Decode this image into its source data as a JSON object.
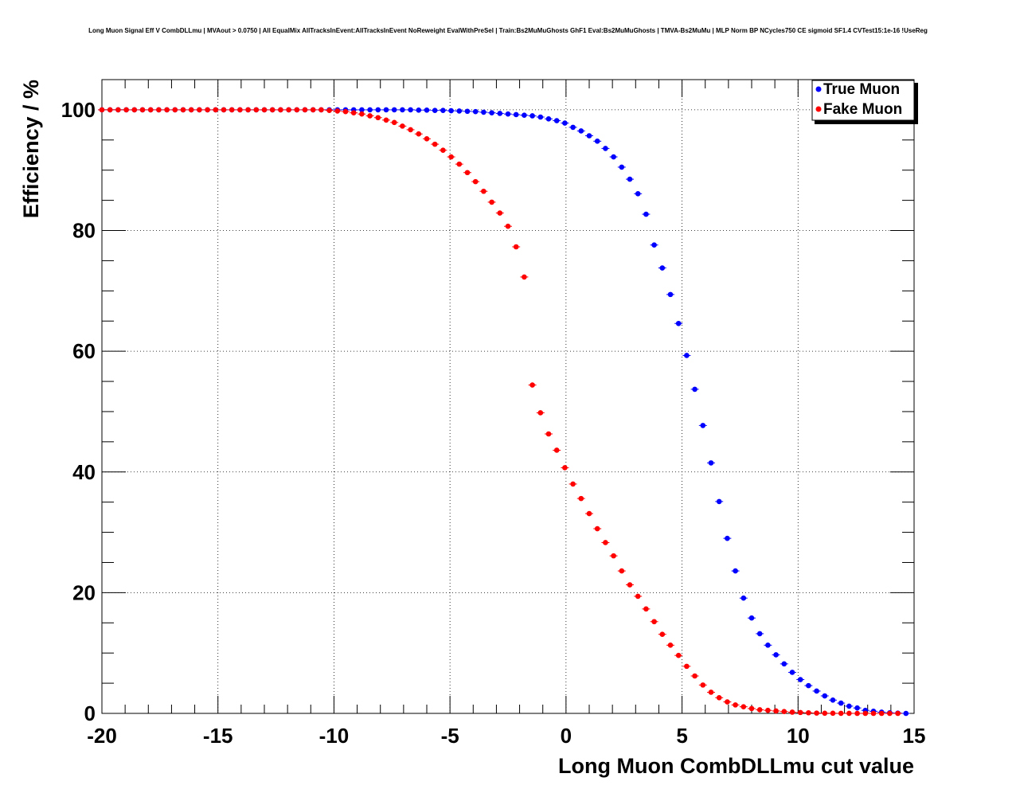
{
  "chart_data": {
    "type": "scatter",
    "title": "Long Muon Signal Eff V CombDLLmu | MVAout > 0.0750 | All EqualMix AllTracksInEvent:AllTracksInEvent NoReweight EvalWithPreSel | Train:Bs2MuMuGhosts GhF1 Eval:Bs2MuMuGhosts | TMVA-Bs2MuMu | MLP Norm BP NCycles750 CE sigmoid SF1.4 CVTest15:1e-16 !UseReg",
    "xlabel": "Long Muon CombDLLmu cut value",
    "ylabel": "Efficiency / %",
    "xlim": [
      -20,
      15
    ],
    "ylim": [
      0,
      105
    ],
    "xticks": [
      -20,
      -15,
      -10,
      -5,
      0,
      5,
      10,
      15
    ],
    "yticks": [
      0,
      20,
      40,
      60,
      80,
      100
    ],
    "grid": true,
    "legend_position": "top-right",
    "series": [
      {
        "name": "True Muon",
        "color": "#0000ff",
        "x": [
          -20,
          -19.65,
          -19.3,
          -18.95,
          -18.6,
          -18.25,
          -17.9,
          -17.55,
          -17.2,
          -16.85,
          -16.5,
          -16.15,
          -15.8,
          -15.45,
          -15.1,
          -14.75,
          -14.4,
          -14.05,
          -13.7,
          -13.35,
          -13,
          -12.65,
          -12.3,
          -11.95,
          -11.6,
          -11.25,
          -10.9,
          -10.55,
          -10.2,
          -9.85,
          -9.5,
          -9.15,
          -8.8,
          -8.45,
          -8.1,
          -7.75,
          -7.4,
          -7.05,
          -6.7,
          -6.35,
          -6,
          -5.65,
          -5.3,
          -4.95,
          -4.6,
          -4.25,
          -3.9,
          -3.55,
          -3.2,
          -2.85,
          -2.5,
          -2.15,
          -1.8,
          -1.45,
          -1.1,
          -0.75,
          -0.4,
          -0.05,
          0.3,
          0.65,
          1,
          1.35,
          1.7,
          2.05,
          2.4,
          2.75,
          3.1,
          3.45,
          3.8,
          4.15,
          4.5,
          4.85,
          5.2,
          5.55,
          5.9,
          6.25,
          6.6,
          6.95,
          7.3,
          7.65,
          8,
          8.35,
          8.7,
          9.05,
          9.4,
          9.75,
          10.1,
          10.45,
          10.8,
          11.15,
          11.5,
          11.85,
          12.2,
          12.55,
          12.9,
          13.25,
          13.6,
          13.95,
          14.3,
          14.65
        ],
        "y": [
          100,
          100,
          100,
          100,
          100,
          100,
          100,
          100,
          100,
          100,
          100,
          100,
          100,
          100,
          100,
          100,
          100,
          100,
          100,
          100,
          100,
          100,
          100,
          100,
          100,
          100,
          100,
          100,
          100,
          100,
          100,
          100,
          100,
          100,
          100,
          100,
          100,
          100,
          100,
          99.95,
          99.95,
          99.9,
          99.9,
          99.85,
          99.8,
          99.75,
          99.7,
          99.6,
          99.5,
          99.4,
          99.3,
          99.2,
          99.1,
          99,
          98.8,
          98.5,
          98.2,
          97.8,
          97.1,
          96.5,
          95.7,
          94.8,
          93.6,
          92.2,
          90.5,
          88.5,
          86.1,
          82.7,
          77.6,
          73.8,
          69.4,
          64.6,
          59.3,
          53.7,
          47.7,
          41.5,
          35.1,
          29,
          23.6,
          19.1,
          15.8,
          13.2,
          11.3,
          9.7,
          8.2,
          6.8,
          5.6,
          4.6,
          3.7,
          2.9,
          2.2,
          1.7,
          1.2,
          0.9,
          0.5,
          0.35,
          0.2,
          0.1,
          0.05,
          0
        ]
      },
      {
        "name": "Fake Muon",
        "color": "#ff0000",
        "x": [
          -20,
          -19.65,
          -19.3,
          -18.95,
          -18.6,
          -18.25,
          -17.9,
          -17.55,
          -17.2,
          -16.85,
          -16.5,
          -16.15,
          -15.8,
          -15.45,
          -15.1,
          -14.75,
          -14.4,
          -14.05,
          -13.7,
          -13.35,
          -13,
          -12.65,
          -12.3,
          -11.95,
          -11.6,
          -11.25,
          -10.9,
          -10.55,
          -10.2,
          -9.85,
          -9.5,
          -9.15,
          -8.8,
          -8.45,
          -8.1,
          -7.75,
          -7.4,
          -7.05,
          -6.7,
          -6.35,
          -6,
          -5.65,
          -5.3,
          -4.95,
          -4.6,
          -4.25,
          -3.9,
          -3.55,
          -3.2,
          -2.85,
          -2.5,
          -2.15,
          -1.8,
          -1.45,
          -1.1,
          -0.75,
          -0.4,
          -0.05,
          0.3,
          0.65,
          1,
          1.35,
          1.7,
          2.05,
          2.4,
          2.75,
          3.1,
          3.45,
          3.8,
          4.15,
          4.5,
          4.85,
          5.2,
          5.55,
          5.9,
          6.25,
          6.6,
          6.95,
          7.3,
          7.65,
          8,
          8.35,
          8.7,
          9.05,
          9.4,
          9.75,
          10.1,
          10.45,
          10.8,
          11.15,
          11.5,
          11.85,
          12.2,
          12.55,
          12.9,
          13.25,
          13.6,
          13.95,
          14.3
        ],
        "y": [
          100,
          100,
          100,
          100,
          100,
          100,
          100,
          100,
          100,
          100,
          100,
          100,
          100,
          100,
          100,
          100,
          100,
          100,
          100,
          100,
          100,
          100,
          100,
          100,
          100,
          100,
          100,
          100,
          99.9,
          99.8,
          99.7,
          99.5,
          99.3,
          99,
          98.7,
          98.3,
          97.9,
          97.3,
          96.7,
          96,
          95.2,
          94.3,
          93.3,
          92.2,
          91,
          89.6,
          88.1,
          86.5,
          84.7,
          82.9,
          80.7,
          77.3,
          72.3,
          54.4,
          49.8,
          46.3,
          43.6,
          40.7,
          38,
          35.6,
          33.1,
          30.6,
          28.3,
          26.1,
          23.6,
          21.3,
          19.4,
          17.3,
          15.2,
          13.1,
          11.3,
          9.6,
          7.8,
          6.2,
          4.7,
          3.5,
          2.6,
          1.9,
          1.4,
          1.1,
          0.8,
          0.6,
          0.5,
          0.4,
          0.3,
          0.2,
          0.15,
          0.1,
          0.05,
          0.03,
          0.02,
          0.01,
          0.01,
          0,
          0,
          0,
          0,
          0,
          0
        ]
      }
    ]
  }
}
